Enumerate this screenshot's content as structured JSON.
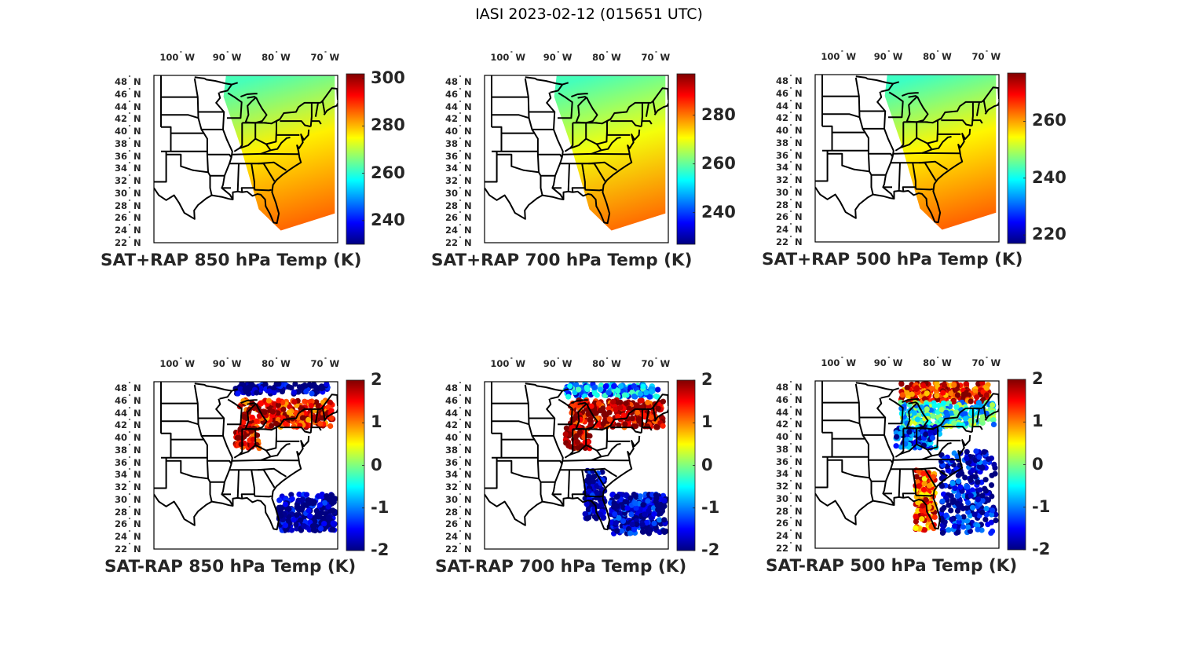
{
  "figure": {
    "title": "IASI 2023-02-12 (015651 UTC)"
  },
  "chart_data": [
    {
      "type": "heatmap",
      "title": "SAT+RAP 850 hPa Temp (K)",
      "variable": "temperature",
      "units": "K",
      "pressure_level_hpa": 850,
      "lon_ticks": [
        "100",
        "90",
        "80",
        "70"
      ],
      "lon_hemisphere": "W",
      "lat_ticks": [
        "48",
        "46",
        "44",
        "42",
        "40",
        "38",
        "36",
        "34",
        "32",
        "30",
        "28",
        "26",
        "24",
        "22"
      ],
      "lat_hemisphere": "N",
      "colorbar": {
        "colormap": "jet",
        "range": [
          230,
          302
        ],
        "ticks": [
          "300",
          "280",
          "260",
          "240"
        ],
        "tick_values": [
          300,
          280,
          260,
          240
        ]
      },
      "field": {
        "north_value": 262,
        "mid_value": 276,
        "south_value": 286
      }
    },
    {
      "type": "heatmap",
      "title": "SAT+RAP 700 hPa Temp (K)",
      "variable": "temperature",
      "units": "K",
      "pressure_level_hpa": 700,
      "lon_ticks": [
        "100",
        "90",
        "80",
        "70"
      ],
      "lon_hemisphere": "W",
      "lat_ticks": [
        "48",
        "46",
        "44",
        "42",
        "40",
        "38",
        "36",
        "34",
        "32",
        "30",
        "28",
        "26",
        "24",
        "22"
      ],
      "lat_hemisphere": "N",
      "colorbar": {
        "colormap": "jet",
        "range": [
          227,
          297
        ],
        "ticks": [
          "280",
          "260",
          "240"
        ],
        "tick_values": [
          280,
          260,
          240
        ]
      },
      "field": {
        "north_value": 258,
        "mid_value": 270,
        "south_value": 281
      }
    },
    {
      "type": "heatmap",
      "title": "SAT+RAP 500 hPa Temp (K)",
      "variable": "temperature",
      "units": "K",
      "pressure_level_hpa": 500,
      "lon_ticks": [
        "100",
        "90",
        "80",
        "70"
      ],
      "lon_hemisphere": "W",
      "lat_ticks": [
        "48",
        "46",
        "44",
        "42",
        "40",
        "38",
        "36",
        "34",
        "32",
        "30",
        "28",
        "26",
        "24",
        "22"
      ],
      "lat_hemisphere": "N",
      "colorbar": {
        "colormap": "jet",
        "range": [
          217,
          277
        ],
        "ticks": [
          "260",
          "240",
          "220"
        ],
        "tick_values": [
          260,
          240,
          220
        ]
      },
      "field": {
        "north_value": 243,
        "mid_value": 255,
        "south_value": 264
      }
    },
    {
      "type": "scatter",
      "title": "SAT-RAP 850 hPa Temp (K)",
      "variable": "temperature difference",
      "units": "K",
      "pressure_level_hpa": 850,
      "lon_ticks": [
        "100",
        "90",
        "80",
        "70"
      ],
      "lon_hemisphere": "W",
      "lat_ticks": [
        "48",
        "46",
        "44",
        "42",
        "40",
        "38",
        "36",
        "34",
        "32",
        "30",
        "28",
        "26",
        "24",
        "22"
      ],
      "lat_hemisphere": "N",
      "colorbar": {
        "colormap": "jet",
        "range": [
          -2,
          2
        ],
        "ticks": [
          "2",
          "1",
          "0",
          "-1",
          "-2"
        ],
        "tick_values": [
          2,
          1,
          0,
          -1,
          -2
        ]
      },
      "regions": [
        {
          "name": "northern edge",
          "lon": [
            -89,
            -70
          ],
          "lat": [
            47.5,
            49.2
          ],
          "value": -2
        },
        {
          "name": "great lakes band",
          "lon": [
            -88,
            -69
          ],
          "lat": [
            42,
            46.5
          ],
          "value": 1.6
        },
        {
          "name": "ohio valley",
          "lon": [
            -89,
            -84
          ],
          "lat": [
            38.5,
            42
          ],
          "value": 1.8
        },
        {
          "name": "atlantic south",
          "lon": [
            -80,
            -68.5
          ],
          "lat": [
            25,
            31
          ],
          "value": -2
        }
      ]
    },
    {
      "type": "scatter",
      "title": "SAT-RAP 700 hPa Temp (K)",
      "variable": "temperature difference",
      "units": "K",
      "pressure_level_hpa": 700,
      "lon_ticks": [
        "100",
        "90",
        "80",
        "70"
      ],
      "lon_hemisphere": "W",
      "lat_ticks": [
        "48",
        "46",
        "44",
        "42",
        "40",
        "38",
        "36",
        "34",
        "32",
        "30",
        "28",
        "26",
        "24",
        "22"
      ],
      "lat_hemisphere": "N",
      "colorbar": {
        "colormap": "jet",
        "range": [
          -2,
          2
        ],
        "ticks": [
          "2",
          "1",
          "0",
          "-1",
          "-2"
        ],
        "tick_values": [
          2,
          1,
          0,
          -1,
          -2
        ]
      },
      "regions": [
        {
          "name": "northern edge",
          "lon": [
            -89,
            -70
          ],
          "lat": [
            47,
            49.2
          ],
          "value": -1
        },
        {
          "name": "great lakes band",
          "lon": [
            -88,
            -69
          ],
          "lat": [
            42,
            46.5
          ],
          "value": 1.8
        },
        {
          "name": "ohio valley",
          "lon": [
            -89,
            -84
          ],
          "lat": [
            38.5,
            42
          ],
          "value": 1.9
        },
        {
          "name": "georgia strip",
          "lon": [
            -85,
            -81
          ],
          "lat": [
            27,
            35
          ],
          "value": -2
        },
        {
          "name": "atlantic south",
          "lon": [
            -80,
            -68.5
          ],
          "lat": [
            24.5,
            31
          ],
          "value": -1.8
        }
      ]
    },
    {
      "type": "scatter",
      "title": "SAT-RAP 500 hPa Temp (K)",
      "variable": "temperature difference",
      "units": "K",
      "pressure_level_hpa": 500,
      "lon_ticks": [
        "100",
        "90",
        "80",
        "70"
      ],
      "lon_hemisphere": "W",
      "lat_ticks": [
        "48",
        "46",
        "44",
        "42",
        "40",
        "38",
        "36",
        "34",
        "32",
        "30",
        "28",
        "26",
        "24",
        "22"
      ],
      "lat_hemisphere": "N",
      "colorbar": {
        "colormap": "jet",
        "range": [
          -2,
          2
        ],
        "ticks": [
          "2",
          "1",
          "0",
          "-1",
          "-2"
        ],
        "tick_values": [
          2,
          1,
          0,
          -1,
          -2
        ]
      },
      "regions": [
        {
          "name": "northern edge",
          "lon": [
            -88,
            -70
          ],
          "lat": [
            46,
            49.2
          ],
          "value": 1.5
        },
        {
          "name": "great lakes band",
          "lon": [
            -88,
            -69
          ],
          "lat": [
            42,
            46
          ],
          "value": -0.4
        },
        {
          "name": "ohio valley",
          "lon": [
            -89,
            -80
          ],
          "lat": [
            38.5,
            42
          ],
          "value": -1.4
        },
        {
          "name": "florida strip",
          "lon": [
            -85,
            -81
          ],
          "lat": [
            25,
            35
          ],
          "value": 1.2
        },
        {
          "name": "atlantic south",
          "lon": [
            -80,
            -68.5
          ],
          "lat": [
            24.5,
            38
          ],
          "value": -1.7
        }
      ]
    }
  ]
}
